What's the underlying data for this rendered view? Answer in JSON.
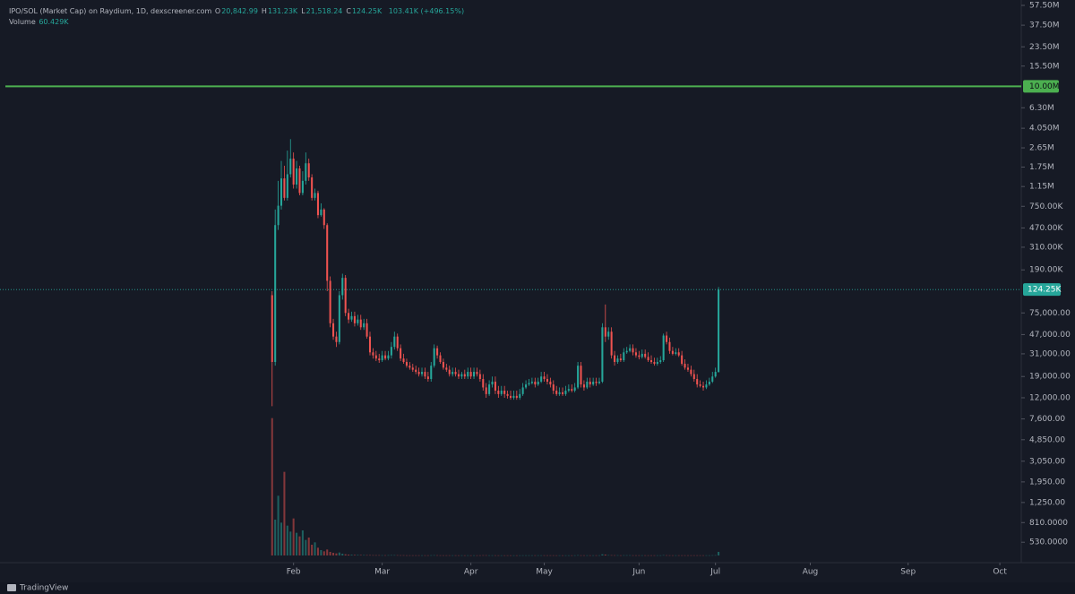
{
  "chart_data": {
    "type": "candlestick",
    "legend": {
      "symbol": "IPO/SOL (Market Cap) on Raydium, 1D, dexscreener.com",
      "items": [
        {
          "label": "O",
          "value": "20,842.99"
        },
        {
          "label": "H",
          "value": "131.23K"
        },
        {
          "label": "L",
          "value": "21,518.24"
        },
        {
          "label": "C",
          "value": "124.25K"
        }
      ],
      "change": "103.41K (+496.15%)",
      "volume_label": "Volume",
      "volume_value": "60.429K"
    },
    "y_scale": "log",
    "ylim": [
      341,
      64600000
    ],
    "yticks": [
      {
        "value": 57500000,
        "label": "57.50M"
      },
      {
        "value": 37500000,
        "label": "37.50M"
      },
      {
        "value": 23500000,
        "label": "23.50M"
      },
      {
        "value": 15500000,
        "label": "15.50M"
      },
      {
        "value": 6300000,
        "label": "6.30M"
      },
      {
        "value": 4050000,
        "label": "4.050M"
      },
      {
        "value": 2650000,
        "label": "2.65M"
      },
      {
        "value": 1750000,
        "label": "1.75M"
      },
      {
        "value": 1150000,
        "label": "1.15M"
      },
      {
        "value": 750000,
        "label": "750.00K"
      },
      {
        "value": 470000,
        "label": "470.00K"
      },
      {
        "value": 310000,
        "label": "310.00K"
      },
      {
        "value": 190000,
        "label": "190.00K"
      },
      {
        "value": 75000,
        "label": "75,000.00"
      },
      {
        "value": 47000,
        "label": "47,000.00"
      },
      {
        "value": 31000,
        "label": "31,000.00"
      },
      {
        "value": 19000,
        "label": "19,000.00"
      },
      {
        "value": 12000,
        "label": "12,000.00"
      },
      {
        "value": 7600,
        "label": "7,600.00"
      },
      {
        "value": 4850,
        "label": "4,850.00"
      },
      {
        "value": 3050,
        "label": "3,050.00"
      },
      {
        "value": 1950,
        "label": "1,950.00"
      },
      {
        "value": 1250,
        "label": "1,250.00"
      },
      {
        "value": 810,
        "label": "810.0000"
      },
      {
        "value": 530,
        "label": "530.0000"
      }
    ],
    "xlim": [
      -89,
      245
    ],
    "xticks": [
      {
        "value": 7,
        "label": "Feb"
      },
      {
        "value": 36,
        "label": "Mar"
      },
      {
        "value": 65,
        "label": "Apr"
      },
      {
        "value": 89,
        "label": "May"
      },
      {
        "value": 120,
        "label": "Jun"
      },
      {
        "value": 145,
        "label": "Jul"
      },
      {
        "value": 176,
        "label": "Aug"
      },
      {
        "value": 208,
        "label": "Sep"
      },
      {
        "value": 238,
        "label": "Oct"
      }
    ],
    "hline": {
      "value": 10000000,
      "label": "10.00M",
      "color": "#4caf50"
    },
    "last_price": {
      "value": 124250,
      "label": "124.25K",
      "color": "#26a69a"
    },
    "up_color": "#26a69a",
    "down_color": "#ef5350",
    "open": [
      110000,
      26000,
      500000,
      760000,
      1370000,
      900000,
      1500000,
      2100000,
      1200000,
      1700000,
      1000000,
      1300000,
      1900000,
      1400000,
      900000,
      1000000,
      620000,
      700000,
      500000,
      150000,
      60000,
      45000,
      40000,
      110000,
      160000,
      75000,
      65000,
      70000,
      60000,
      65000,
      55000,
      60000,
      45000,
      32000,
      30000,
      28000,
      27000,
      30000,
      28000,
      30000,
      36000,
      45000,
      35000,
      28000,
      26000,
      24000,
      23000,
      22000,
      21000,
      20000,
      21000,
      19000,
      18000,
      24000,
      35000,
      30000,
      26000,
      23000,
      22000,
      20000,
      21000,
      20000,
      19000,
      20000,
      19000,
      21000,
      19000,
      21000,
      20000,
      18000,
      15000,
      13000,
      16000,
      17000,
      14000,
      13000,
      14000,
      13000,
      12500,
      12000,
      12500,
      12000,
      13000,
      15000,
      16000,
      16500,
      17000,
      16000,
      17000,
      19000,
      18000,
      17000,
      16000,
      14000,
      13000,
      13500,
      13000,
      14000,
      14500,
      14000,
      15000,
      24000,
      16000,
      15000,
      17000,
      16000,
      17000,
      16500,
      17000,
      55000,
      45000,
      50000,
      30000,
      26000,
      28000,
      27000,
      32000,
      33000,
      35000,
      32000,
      30000,
      29000,
      31000,
      29000,
      27000,
      26000,
      25000,
      26000,
      27000,
      46000,
      40000,
      33000,
      31000,
      32000,
      30000,
      25000,
      23000,
      22000,
      20000,
      18000,
      16000,
      15500,
      15000,
      16000,
      17000,
      19000,
      20842.99
    ],
    "high": [
      120000,
      700000,
      1300000,
      2000000,
      1800000,
      2500000,
      3200000,
      2400000,
      2000000,
      1800000,
      1600000,
      2400000,
      2100000,
      1500000,
      1100000,
      1050000,
      800000,
      720000,
      520000,
      165000,
      66000,
      50000,
      120000,
      175000,
      170000,
      82000,
      77000,
      77000,
      72000,
      72000,
      66000,
      66000,
      50000,
      35000,
      33000,
      31000,
      33000,
      33000,
      33000,
      40000,
      50000,
      48000,
      38000,
      31000,
      28000,
      26000,
      25000,
      24000,
      23000,
      23000,
      23000,
      21000,
      26000,
      38000,
      37000,
      32000,
      28000,
      25000,
      24000,
      23000,
      23000,
      22000,
      21000,
      22000,
      23000,
      23000,
      23000,
      23000,
      22000,
      20000,
      16500,
      17500,
      19000,
      19000,
      15500,
      15500,
      15500,
      14000,
      14000,
      14000,
      14000,
      14500,
      16500,
      17500,
      18000,
      18500,
      18500,
      18500,
      21000,
      21000,
      20000,
      18500,
      17500,
      15500,
      15000,
      15000,
      15500,
      16000,
      16000,
      16500,
      26000,
      26000,
      17500,
      18500,
      18500,
      18500,
      18500,
      18500,
      60000,
      90000,
      55000,
      55000,
      33000,
      30000,
      31000,
      35000,
      36000,
      38000,
      38000,
      35000,
      33000,
      34000,
      34000,
      32000,
      30000,
      28500,
      28500,
      29500,
      48000,
      50000,
      44000,
      36000,
      35000,
      35000,
      33000,
      27500,
      25000,
      24000,
      22000,
      20000,
      17500,
      17000,
      17500,
      18500,
      21000,
      23000,
      131230
    ],
    "low": [
      10000,
      24000,
      450000,
      700000,
      850000,
      850000,
      1400000,
      1100000,
      1100000,
      950000,
      950000,
      1200000,
      1300000,
      850000,
      850000,
      580000,
      600000,
      460000,
      120000,
      55000,
      42000,
      36000,
      38000,
      100000,
      70000,
      60000,
      62000,
      56000,
      57000,
      52000,
      52000,
      43000,
      30000,
      28000,
      26500,
      25500,
      26000,
      27000,
      27000,
      28000,
      34000,
      33000,
      26500,
      25000,
      23000,
      22000,
      21000,
      20000,
      19000,
      19000,
      18000,
      17000,
      17000,
      23000,
      28000,
      25000,
      22000,
      21000,
      19000,
      19000,
      19000,
      18000,
      18000,
      18000,
      18000,
      18000,
      18000,
      19000,
      17000,
      14000,
      12000,
      12500,
      15000,
      13000,
      12000,
      12500,
      12000,
      11800,
      11500,
      11500,
      11500,
      11500,
      12500,
      14500,
      15500,
      16000,
      15000,
      15500,
      16500,
      17000,
      16000,
      15000,
      13000,
      12500,
      12500,
      12500,
      12500,
      13500,
      13500,
      13500,
      14500,
      15000,
      14000,
      14500,
      15000,
      15500,
      15500,
      16000,
      16500,
      40000,
      42000,
      28000,
      24000,
      25000,
      26000,
      26000,
      31000,
      32000,
      30000,
      28500,
      27500,
      28000,
      28000,
      26000,
      25000,
      24000,
      24000,
      25000,
      26000,
      38000,
      31000,
      30000,
      30000,
      29000,
      24000,
      22000,
      21000,
      19000,
      17000,
      15000,
      15000,
      14000,
      14500,
      15500,
      16500,
      18500,
      21518.24
    ],
    "close": [
      26000,
      500000,
      760000,
      1370000,
      900000,
      1500000,
      2100000,
      1200000,
      1700000,
      1000000,
      1300000,
      1900000,
      1400000,
      900000,
      1000000,
      620000,
      700000,
      500000,
      150000,
      60000,
      45000,
      40000,
      110000,
      160000,
      75000,
      65000,
      70000,
      60000,
      65000,
      55000,
      60000,
      45000,
      32000,
      30000,
      28000,
      27000,
      30000,
      28000,
      30000,
      36000,
      45000,
      35000,
      28000,
      26000,
      24000,
      23000,
      22000,
      21000,
      20000,
      21000,
      19000,
      18000,
      24000,
      35000,
      30000,
      26000,
      23000,
      22000,
      20000,
      21000,
      20000,
      19000,
      20000,
      19000,
      21000,
      19000,
      21000,
      20000,
      18000,
      15000,
      13000,
      16000,
      17000,
      14000,
      13000,
      14000,
      13000,
      12500,
      12000,
      12500,
      12000,
      13000,
      15000,
      16000,
      16500,
      17000,
      16000,
      17000,
      19000,
      18000,
      17000,
      16000,
      14000,
      13000,
      13500,
      13000,
      14000,
      14500,
      14000,
      15000,
      24000,
      16000,
      15000,
      17000,
      16000,
      17000,
      16500,
      17000,
      55000,
      45000,
      50000,
      30000,
      26000,
      28000,
      27000,
      32000,
      33000,
      35000,
      32000,
      30000,
      29000,
      31000,
      29000,
      27000,
      26000,
      25000,
      26000,
      27000,
      46000,
      40000,
      33000,
      31000,
      32000,
      30000,
      25000,
      23000,
      22000,
      20000,
      18000,
      16000,
      15500,
      15000,
      16000,
      17000,
      19000,
      21000,
      124250
    ],
    "volume_ylim": [
      0,
      2400000
    ],
    "volume": [
      2300000,
      600000,
      1000000,
      550000,
      1400000,
      500000,
      400000,
      620000,
      380000,
      320000,
      420000,
      260000,
      300000,
      180000,
      220000,
      130000,
      90000,
      70000,
      100000,
      60000,
      45000,
      35000,
      50000,
      30000,
      20000,
      15000,
      12000,
      10000,
      9000,
      8000,
      7000,
      6000,
      6000,
      5000,
      5000,
      5000,
      4000,
      4000,
      5000,
      6000,
      6000,
      5000,
      4000,
      4000,
      3000,
      3000,
      3000,
      3000,
      3000,
      3000,
      3000,
      3000,
      4000,
      5000,
      4000,
      3000,
      3000,
      3000,
      3000,
      3000,
      3000,
      2500,
      3000,
      2500,
      3000,
      2500,
      3000,
      2500,
      3000,
      4000,
      4000,
      3000,
      3000,
      3000,
      2500,
      2500,
      2500,
      2500,
      2500,
      2500,
      2500,
      2500,
      3000,
      3000,
      3000,
      3000,
      3000,
      3000,
      3000,
      3000,
      3000,
      3000,
      3000,
      2500,
      2500,
      2500,
      2500,
      2500,
      2500,
      3000,
      5000,
      3000,
      3000,
      3000,
      3000,
      3000,
      3000,
      3000,
      20000,
      15000,
      6000,
      5000,
      4000,
      4000,
      3000,
      4000,
      4000,
      4000,
      3000,
      3000,
      3000,
      3000,
      3000,
      3000,
      3000,
      3000,
      3000,
      3000,
      6000,
      4000,
      3000,
      3000,
      3000,
      3000,
      3000,
      3000,
      3000,
      3000,
      3000,
      3000,
      3000,
      3000,
      3000,
      3000,
      4000,
      5000,
      60429
    ],
    "footer": "TradingView"
  }
}
